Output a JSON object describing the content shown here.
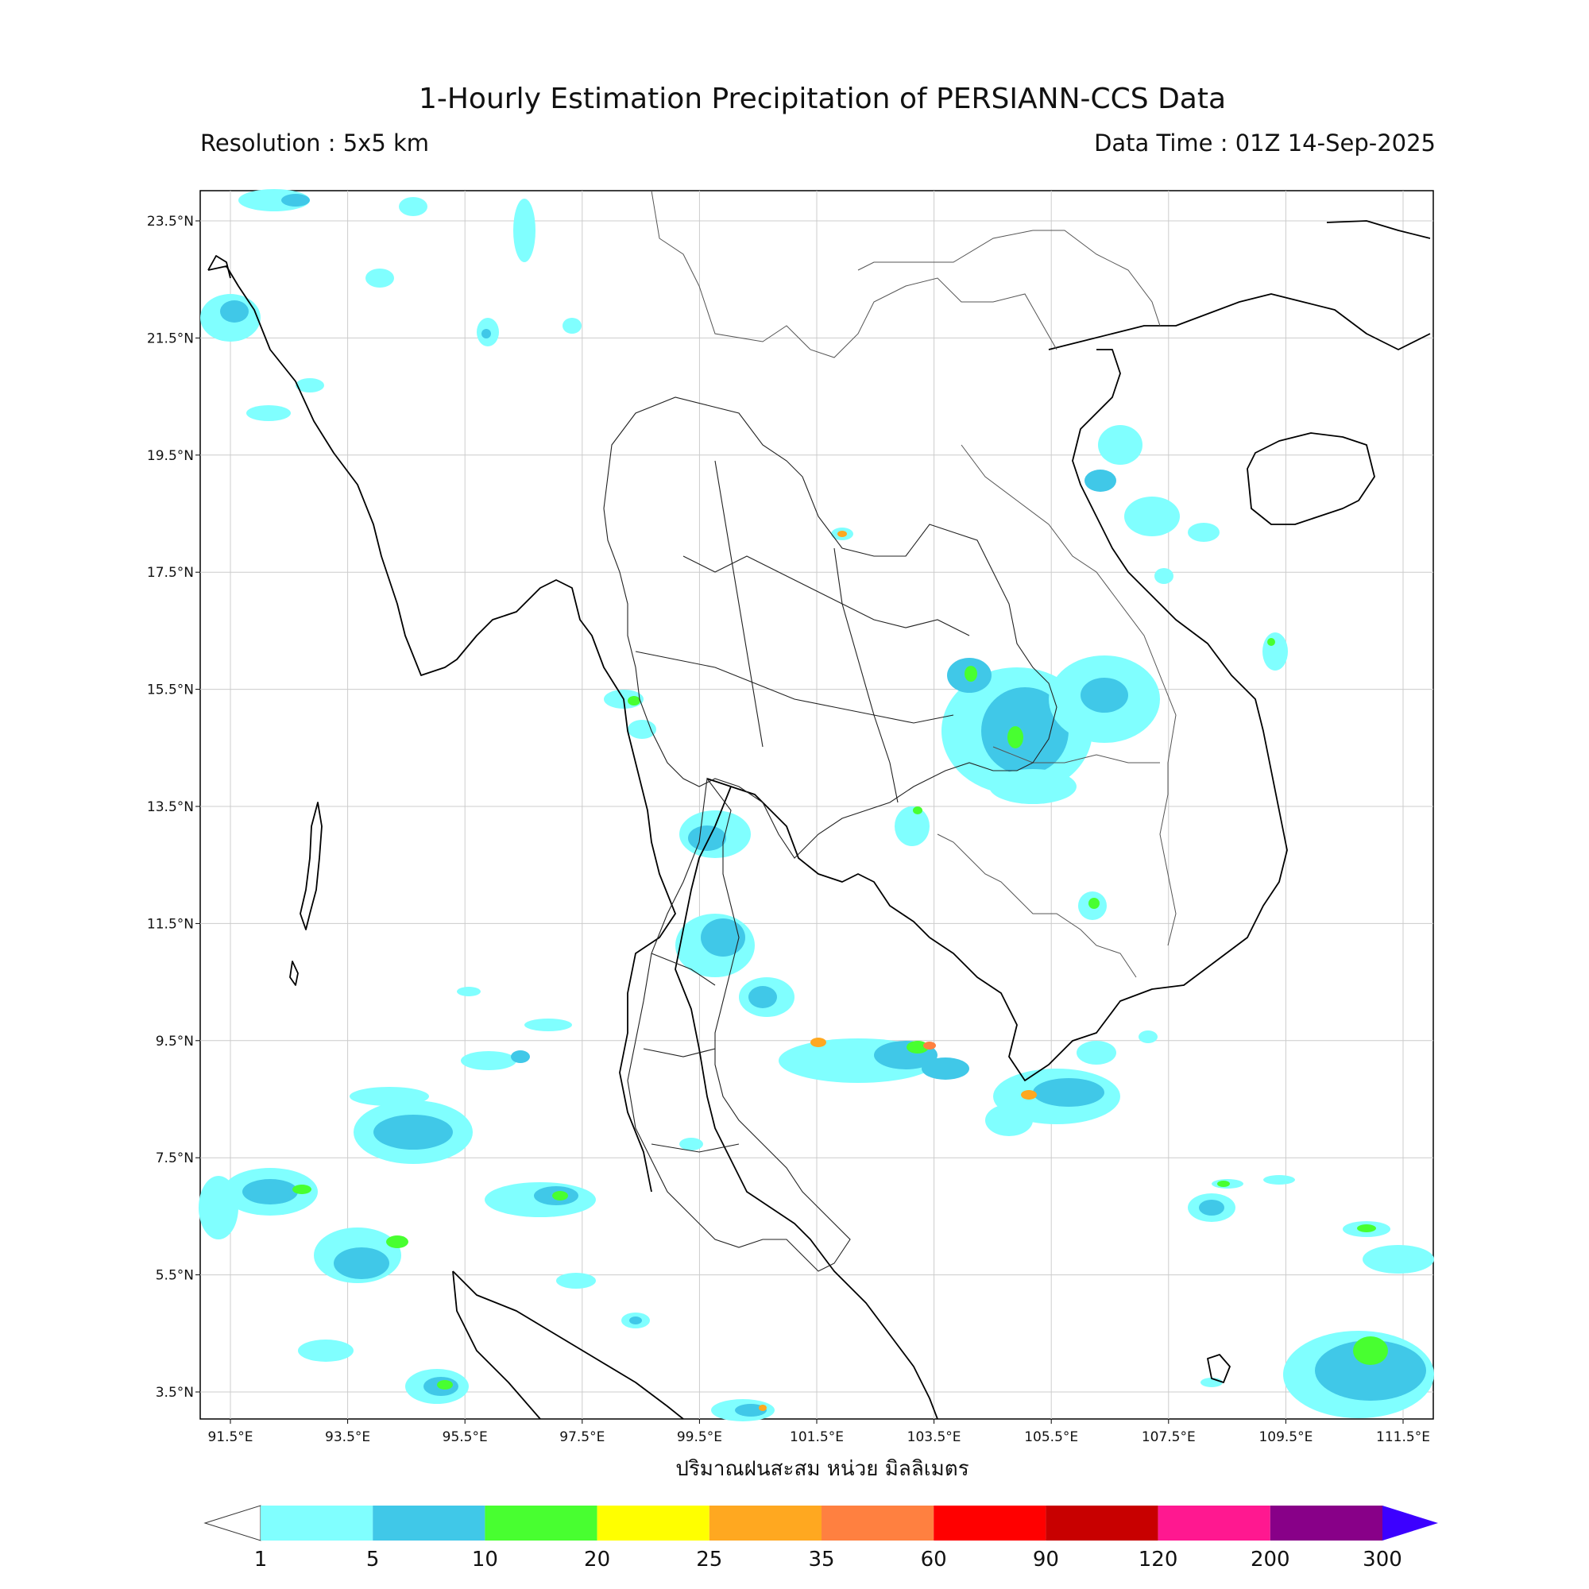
{
  "title": "1-Hourly Estimation Precipitation of PERSIANN-CCS Data",
  "resolution_text": "Resolution : 5x5 km",
  "datatime_text": "Data Time : 01Z 14-Sep-2025",
  "x_axis_label": "ปริมาณฝนสะสม หน่วย มิลลิเมตร",
  "lat_ticks": [
    "23.5°N",
    "21.5°N",
    "19.5°N",
    "17.5°N",
    "15.5°N",
    "13.5°N",
    "11.5°N",
    "9.5°N",
    "7.5°N",
    "5.5°N",
    "3.5°N"
  ],
  "lon_ticks": [
    "91.5°E",
    "93.5°E",
    "95.5°E",
    "97.5°E",
    "99.5°E",
    "101.5°E",
    "103.5°E",
    "105.5°E",
    "107.5°E",
    "109.5°E",
    "111.5°E"
  ],
  "colorbar": {
    "labels": [
      "1",
      "5",
      "10",
      "20",
      "25",
      "35",
      "60",
      "90",
      "120",
      "200",
      "300"
    ],
    "colors": [
      "#80ffff",
      "#40c8e8",
      "#48ff30",
      "#ffff00",
      "#ffa820",
      "#ff8040",
      "#ff0000",
      "#c80000",
      "#ff1890",
      "#880088"
    ],
    "over_color": "#3c00ff",
    "under_color": "#ffffff"
  }
}
